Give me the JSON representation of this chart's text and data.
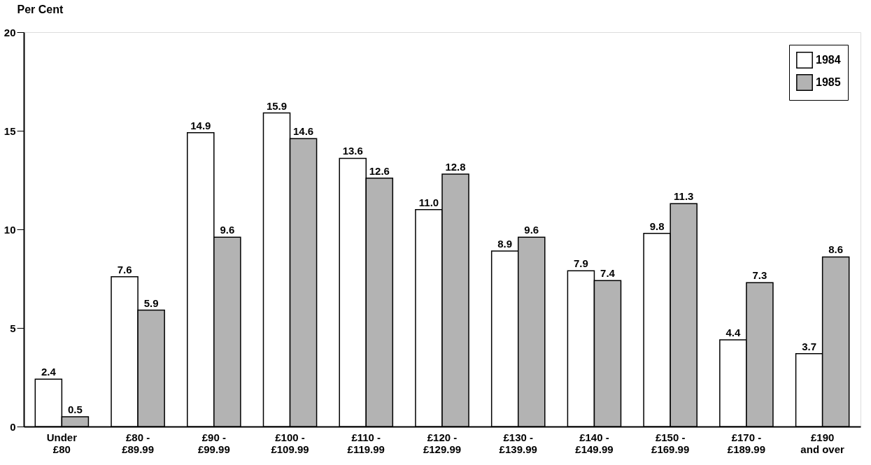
{
  "chart_data": {
    "type": "bar",
    "ylabel": "Per Cent",
    "categories": [
      "Under\n£80",
      "£80 -\n£89.99",
      "£90 -\n£99.99",
      "£100 -\n£109.99",
      "£110 -\n£119.99",
      "£120 -\n£129.99",
      "£130 -\n£139.99",
      "£140 -\n£149.99",
      "£150 -\n£169.99",
      "£170 -\n£189.99",
      "£190\nand over"
    ],
    "series": [
      {
        "name": "1984",
        "color": "#ffffff",
        "values": [
          2.4,
          7.6,
          14.9,
          15.9,
          13.6,
          11.0,
          8.9,
          7.9,
          9.8,
          4.4,
          3.7
        ],
        "value_labels": [
          "2.4",
          "7.6",
          "14.9",
          "15.9",
          "13.6",
          "11.0",
          "8.9",
          "7.9",
          "9.8",
          "4.4",
          "3.7"
        ]
      },
      {
        "name": "1985",
        "color": "#b3b3b3",
        "values": [
          0.5,
          5.9,
          9.6,
          14.6,
          12.6,
          12.8,
          9.6,
          7.4,
          11.3,
          7.3,
          8.6
        ],
        "value_labels": [
          "0.5",
          "5.9",
          "9.6",
          "14.6",
          "12.6",
          "12.8",
          "9.6",
          "7.4",
          "11.3",
          "7.3",
          "8.6"
        ]
      }
    ],
    "ylim": [
      0,
      20
    ],
    "yticks": [
      0,
      5,
      10,
      15,
      20
    ],
    "grid": false,
    "legend": "top right"
  }
}
